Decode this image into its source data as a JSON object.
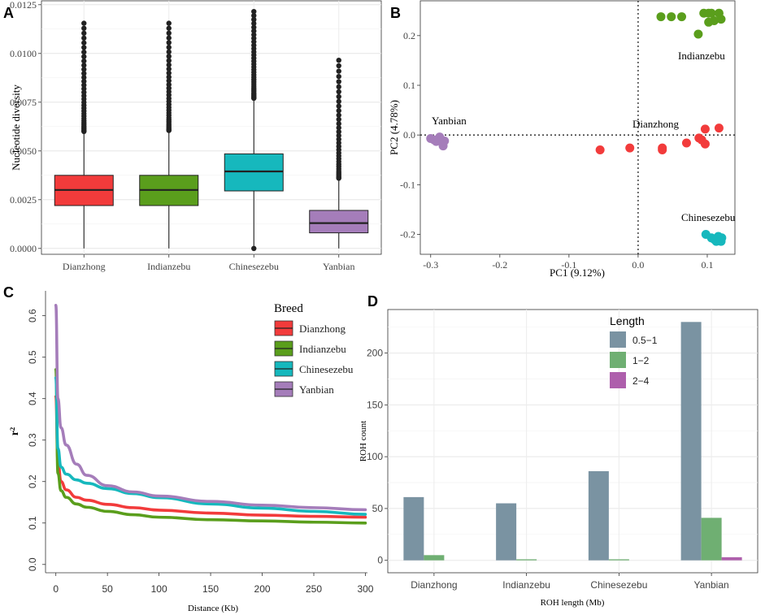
{
  "panels": {
    "a": "A",
    "b": "B",
    "c": "C",
    "d": "D"
  },
  "colors": {
    "Dianzhong": "#f23b3b",
    "Indianzebu": "#5a9e1c",
    "Chinesezebu": "#16b8bd",
    "Yanbian": "#a57dba",
    "len_05_1": "#7a93a2",
    "len_1_2": "#6faf72",
    "len_2_4": "#ae5fac"
  },
  "chart_data": [
    {
      "type": "box",
      "panel": "A",
      "title": "",
      "xlabel": "",
      "ylabel": "Nucleotide diversity",
      "ylim": [
        -0.0003,
        0.0127
      ],
      "yticks": [
        "0.0000",
        "0.0025",
        "0.0050",
        "0.0075",
        "0.0100",
        "0.0125"
      ],
      "ytick_values": [
        0.0,
        0.0025,
        0.005,
        0.0075,
        0.01,
        0.0125
      ],
      "categories": [
        "Dianzhong",
        "Indianzebu",
        "Chinesezebu",
        "Yanbian"
      ],
      "boxes": [
        {
          "name": "Dianzhong",
          "min": 0.0,
          "q1": 0.0022,
          "median": 0.003,
          "q3": 0.00375,
          "whisker_high": 0.006,
          "outlier_max": 0.01155
        },
        {
          "name": "Indianzebu",
          "min": 0.0,
          "q1": 0.0022,
          "median": 0.003,
          "q3": 0.00375,
          "whisker_high": 0.00605,
          "outlier_max": 0.01155
        },
        {
          "name": "Chinesezebu",
          "min": 0.0,
          "q1": 0.00295,
          "median": 0.00395,
          "q3": 0.00485,
          "whisker_high": 0.0077,
          "outlier_max": 0.01215
        },
        {
          "name": "Yanbian",
          "min": 0.0,
          "q1": 0.0008,
          "median": 0.0013,
          "q3": 0.00195,
          "whisker_high": 0.0036,
          "outlier_max": 0.00965
        }
      ]
    },
    {
      "type": "scatter",
      "panel": "B",
      "xlabel": "PC1 (9.12%)",
      "ylabel": "PC2 (4.78%)",
      "xlim": [
        -0.315,
        0.14
      ],
      "ylim": [
        -0.24,
        0.27
      ],
      "xticks": [
        "-0.3",
        "-0.2",
        "-0.1",
        "0.0",
        "0.1"
      ],
      "xtick_values": [
        -0.3,
        -0.2,
        -0.1,
        0.0,
        0.1
      ],
      "yticks": [
        "-0.2",
        "-0.1",
        "0.0",
        "0.1",
        "0.2"
      ],
      "ytick_values": [
        -0.2,
        -0.1,
        0.0,
        0.1,
        0.2
      ],
      "group_labels": [
        "Yanbian",
        "Dianzhong",
        "Indianzebu",
        "Chinesezebu"
      ],
      "series": [
        {
          "name": "Dianzhong",
          "x": [
            -0.055,
            -0.012,
            0.035,
            0.035,
            0.07,
            0.088,
            0.092,
            0.097,
            0.097,
            0.117
          ],
          "y": [
            -0.03,
            -0.026,
            -0.026,
            -0.03,
            -0.016,
            -0.006,
            -0.01,
            0.012,
            -0.018,
            0.014
          ]
        },
        {
          "name": "Indianzebu",
          "x": [
            0.033,
            0.048,
            0.063,
            0.087,
            0.095,
            0.102,
            0.106,
            0.11,
            0.12,
            0.117,
            0.102
          ],
          "y": [
            0.238,
            0.238,
            0.238,
            0.203,
            0.245,
            0.245,
            0.245,
            0.23,
            0.233,
            0.245,
            0.227
          ]
        },
        {
          "name": "Chinesezebu",
          "x": [
            0.098,
            0.106,
            0.11,
            0.113,
            0.118,
            0.116,
            0.121,
            0.12
          ],
          "y": [
            -0.2,
            -0.207,
            -0.21,
            -0.214,
            -0.21,
            -0.204,
            -0.207,
            -0.214
          ]
        },
        {
          "name": "Yanbian",
          "x": [
            -0.3,
            -0.292,
            -0.285,
            -0.282,
            -0.287,
            -0.295,
            -0.28
          ],
          "y": [
            -0.007,
            -0.013,
            -0.009,
            -0.022,
            -0.004,
            -0.01,
            -0.012
          ]
        }
      ]
    },
    {
      "type": "line",
      "panel": "C",
      "xlabel": "Distance (Kb)",
      "ylabel": "r²",
      "xlim": [
        -10,
        302
      ],
      "ylim": [
        -0.02,
        0.66
      ],
      "xticks": [
        "0",
        "50",
        "100",
        "150",
        "200",
        "250",
        "300"
      ],
      "xtick_values": [
        0,
        50,
        100,
        150,
        200,
        250,
        300
      ],
      "yticks": [
        "0.0",
        "0.1",
        "0.2",
        "0.3",
        "0.4",
        "0.5",
        "0.6"
      ],
      "ytick_values": [
        0.0,
        0.1,
        0.2,
        0.3,
        0.4,
        0.5,
        0.6
      ],
      "legend_title": "Breed",
      "legend_position": "top-right",
      "x": [
        0,
        2,
        5,
        10,
        20,
        30,
        50,
        75,
        100,
        150,
        200,
        250,
        300
      ],
      "series": [
        {
          "name": "Dianzhong",
          "values": [
            0.405,
            0.25,
            0.2,
            0.18,
            0.162,
            0.155,
            0.145,
            0.137,
            0.131,
            0.124,
            0.119,
            0.116,
            0.114
          ]
        },
        {
          "name": "Indianzebu",
          "values": [
            0.47,
            0.22,
            0.178,
            0.162,
            0.146,
            0.138,
            0.128,
            0.12,
            0.114,
            0.108,
            0.105,
            0.102,
            0.1
          ]
        },
        {
          "name": "Chinesezebu",
          "values": [
            0.45,
            0.28,
            0.235,
            0.218,
            0.204,
            0.196,
            0.183,
            0.171,
            0.161,
            0.146,
            0.136,
            0.128,
            0.121
          ]
        },
        {
          "name": "Yanbian",
          "values": [
            0.625,
            0.4,
            0.33,
            0.288,
            0.242,
            0.215,
            0.19,
            0.175,
            0.165,
            0.152,
            0.143,
            0.137,
            0.132
          ]
        }
      ]
    },
    {
      "type": "bar",
      "panel": "D",
      "xlabel": "ROH length (Mb)",
      "ylabel": "ROH count",
      "ylim": [
        -12,
        242
      ],
      "yticks": [
        "0",
        "50",
        "100",
        "150",
        "200"
      ],
      "ytick_values": [
        0,
        50,
        100,
        150,
        200
      ],
      "categories": [
        "Dianzhong",
        "Indianzebu",
        "Chinesezebu",
        "Yanbian"
      ],
      "legend_title": "Length",
      "legend_position": "top-right",
      "series": [
        {
          "name": "0.5−1",
          "values": [
            61,
            55,
            86,
            230
          ]
        },
        {
          "name": "1−2",
          "values": [
            5,
            1,
            1,
            41
          ]
        },
        {
          "name": "2−4",
          "values": [
            0,
            0,
            0,
            3
          ]
        }
      ]
    }
  ]
}
